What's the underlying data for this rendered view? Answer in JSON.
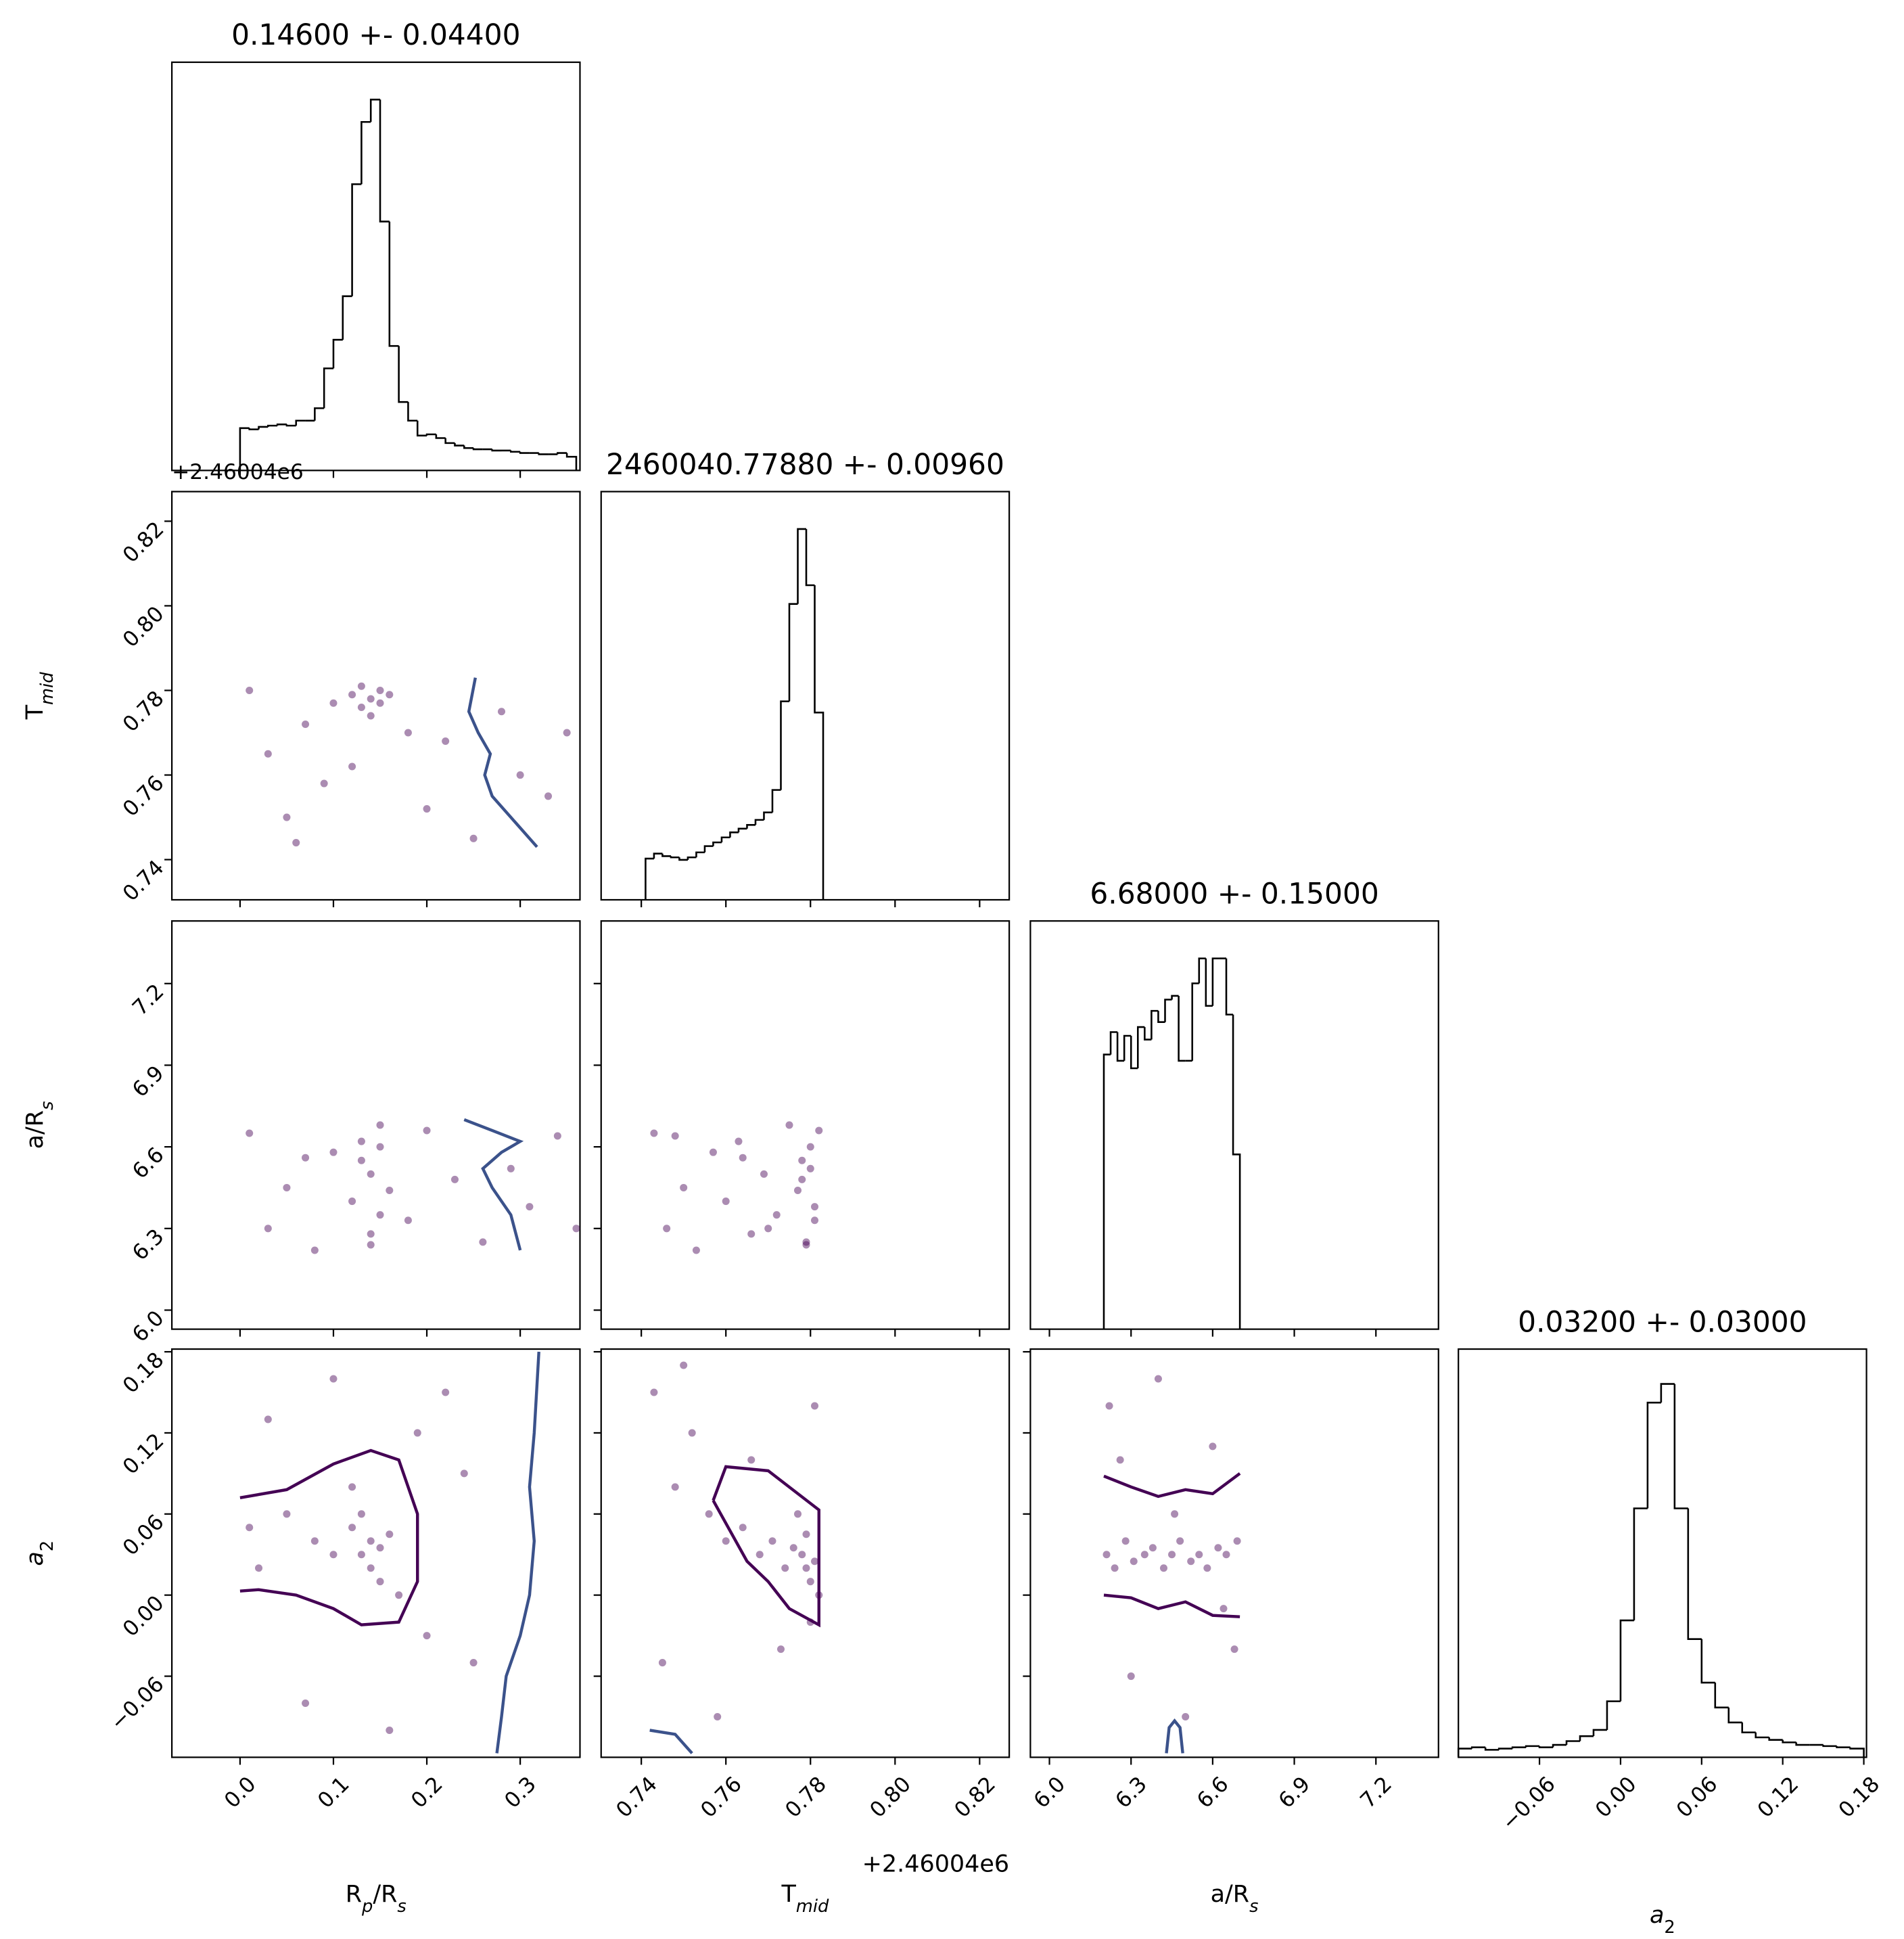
{
  "chart_data": {
    "type": "corner",
    "parameters": [
      {
        "label": [
          {
            "text": "R"
          },
          {
            "text": "p",
            "sub": true,
            "italic": true
          },
          {
            "text": "/R"
          },
          {
            "text": "s",
            "sub": true,
            "italic": true
          }
        ],
        "title": "0.14600 +- 0.04400",
        "lim": [
          -0.073,
          0.364
        ],
        "ticks": [
          {
            "value": 0,
            "label": "0.0"
          },
          0.1,
          0.2,
          0.3
        ]
      },
      {
        "label": [
          {
            "text": "T"
          },
          {
            "text": "mid",
            "sub": true,
            "italic": true
          }
        ],
        "title": "2460040.77880 +- 0.00960",
        "lim": [
          0.7305,
          0.827
        ],
        "offset": "+2.46004e6",
        "ticks": [
          0.74,
          0.76,
          0.78,
          {
            "value": 0.8,
            "label": "0.80"
          },
          0.82
        ]
      },
      {
        "label": [
          {
            "text": "a/R"
          },
          {
            "text": "s",
            "sub": true,
            "italic": true
          }
        ],
        "title": "6.68000 +- 0.15000",
        "lim": [
          5.93,
          7.43
        ],
        "ticks": [
          {
            "value": 6,
            "label": "6.0"
          },
          6.3,
          6.6,
          6.9,
          7.2
        ]
      },
      {
        "label": [
          {
            "text": "a",
            "italic": true
          },
          {
            "text": "2",
            "sub": true
          }
        ],
        "title": "0.03200 +- 0.03000",
        "lim": [
          -0.12,
          0.182
        ],
        "ticks": [
          {
            "value": -0.06,
            "label": "−0.06"
          },
          {
            "value": 0,
            "label": "0.00"
          },
          0.06,
          0.12,
          0.18
        ]
      }
    ],
    "histograms": [
      {
        "ylim": [
          0,
          328
        ],
        "bins": [
          0,
          0.01,
          0.02,
          0.03,
          0.04,
          0.05,
          0.06,
          0.07,
          0.08,
          0.09,
          0.1,
          0.11,
          0.12,
          0.13,
          0.14,
          0.15,
          0.16,
          0.17,
          0.18,
          0.19,
          0.2,
          0.21,
          0.22,
          0.23,
          0.24,
          0.25,
          0.26,
          0.27,
          0.28,
          0.29,
          0.3,
          0.31,
          0.32,
          0.33,
          0.34,
          0.35,
          0.36
        ],
        "counts": [
          34,
          33,
          35,
          36,
          37,
          36,
          40,
          40,
          50,
          82,
          105,
          140,
          230,
          280,
          298,
          200,
          100,
          55,
          40,
          28,
          29,
          26,
          22,
          20,
          18,
          17,
          17,
          16,
          16,
          15,
          14,
          14,
          13,
          13,
          14,
          11
        ]
      },
      {
        "ylim": [
          0,
          327
        ],
        "bins": [
          0.741,
          0.743,
          0.745,
          0.747,
          0.749,
          0.751,
          0.753,
          0.755,
          0.757,
          0.759,
          0.761,
          0.763,
          0.765,
          0.767,
          0.769,
          0.771,
          0.773,
          0.775,
          0.777,
          0.779,
          0.781,
          0.783
        ],
        "counts": [
          33,
          37,
          35,
          34,
          32,
          34,
          38,
          43,
          46,
          50,
          54,
          57,
          60,
          64,
          70,
          88,
          159,
          237,
          297,
          252,
          150
        ]
      },
      {
        "ylim": [
          0,
          327
        ],
        "bins": [
          6.2,
          6.225,
          6.25,
          6.275,
          6.3,
          6.325,
          6.35,
          6.375,
          6.4,
          6.425,
          6.45,
          6.475,
          6.5,
          6.525,
          6.55,
          6.575,
          6.6,
          6.625,
          6.65,
          6.675,
          6.7
        ],
        "counts": [
          220,
          238,
          215,
          235,
          209,
          242,
          232,
          255,
          246,
          264,
          267,
          215,
          215,
          277,
          297,
          259,
          297,
          297,
          252,
          140
        ]
      },
      {
        "ylim": [
          0,
          328
        ],
        "bins": [
          -0.12,
          -0.11,
          -0.1,
          -0.09,
          -0.08,
          -0.07,
          -0.06,
          -0.05,
          -0.04,
          -0.03,
          -0.02,
          -0.01,
          0,
          0.01,
          0.02,
          0.03,
          0.04,
          0.05,
          0.06,
          0.07,
          0.08,
          0.09,
          0.1,
          0.11,
          0.12,
          0.13,
          0.14,
          0.15,
          0.16,
          0.17,
          0.18
        ],
        "counts": [
          7,
          8,
          6,
          7,
          8,
          9,
          8,
          10,
          13,
          17,
          22,
          45,
          110,
          200,
          285,
          300,
          200,
          95,
          60,
          40,
          28,
          20,
          16,
          14,
          12,
          10,
          10,
          9,
          8,
          7
        ]
      }
    ],
    "pairs": [
      {
        "color": "#440154",
        "x": [
          0.01,
          0.03,
          0.05,
          0.07,
          0.09,
          0.1,
          0.12,
          0.13,
          0.14,
          0.15,
          0.16,
          0.14,
          0.13,
          0.15,
          0.12,
          0.18,
          0.2,
          0.22,
          0.25,
          0.28,
          0.3,
          0.33,
          0.35,
          0.06
        ],
        "y": [
          0.78,
          0.765,
          0.75,
          0.772,
          0.758,
          0.777,
          0.779,
          0.776,
          0.778,
          0.777,
          0.779,
          0.774,
          0.781,
          0.78,
          0.762,
          0.77,
          0.752,
          0.768,
          0.745,
          0.775,
          0.76,
          0.755,
          0.77,
          0.744
        ],
        "lines": [
          {
            "color": "#3b528b",
            "x": [
              0.252,
              0.245,
              0.255,
              0.268,
              0.262,
              0.27,
              0.29,
              0.318
            ],
            "y": [
              0.783,
              0.775,
              0.77,
              0.765,
              0.76,
              0.755,
              0.75,
              0.743
            ]
          }
        ]
      },
      {
        "color": "#440154",
        "x": [
          0.01,
          0.03,
          0.05,
          0.08,
          0.1,
          0.12,
          0.13,
          0.14,
          0.14,
          0.15,
          0.15,
          0.16,
          0.13,
          0.14,
          0.15,
          0.18,
          0.2,
          0.23,
          0.26,
          0.29,
          0.31,
          0.34,
          0.36,
          0.07
        ],
        "y": [
          6.65,
          6.3,
          6.45,
          6.22,
          6.58,
          6.4,
          6.62,
          6.28,
          6.5,
          6.35,
          6.68,
          6.44,
          6.55,
          6.24,
          6.6,
          6.33,
          6.66,
          6.48,
          6.25,
          6.52,
          6.38,
          6.64,
          6.3,
          6.56
        ],
        "lines": [
          {
            "color": "#3b528b",
            "x": [
              0.24,
              0.27,
              0.3,
              0.28,
              0.26,
              0.27,
              0.29,
              0.3
            ],
            "y": [
              6.7,
              6.66,
              6.62,
              6.58,
              6.52,
              6.45,
              6.35,
              6.22
            ]
          }
        ]
      },
      {
        "color": "#440154",
        "x": [
          0.743,
          0.746,
          0.75,
          0.753,
          0.757,
          0.76,
          0.763,
          0.766,
          0.769,
          0.772,
          0.775,
          0.777,
          0.778,
          0.779,
          0.78,
          0.781,
          0.782,
          0.778,
          0.779,
          0.78,
          0.781,
          0.748,
          0.77,
          0.764
        ],
        "y": [
          6.65,
          6.3,
          6.45,
          6.22,
          6.58,
          6.4,
          6.62,
          6.28,
          6.5,
          6.35,
          6.68,
          6.44,
          6.55,
          6.24,
          6.6,
          6.33,
          6.66,
          6.48,
          6.25,
          6.52,
          6.38,
          6.64,
          6.3,
          6.56
        ],
        "lines": []
      },
      {
        "color": "#440154",
        "x": [
          0.01,
          0.02,
          0.05,
          0.08,
          0.1,
          0.12,
          0.13,
          0.14,
          0.14,
          0.15,
          0.15,
          0.16,
          0.13,
          0.12,
          0.17,
          0.19,
          0.22,
          0.25,
          0.03,
          0.07,
          0.1,
          0.2,
          0.24,
          0.16
        ],
        "y": [
          0.05,
          0.02,
          0.06,
          0.04,
          0.03,
          0.05,
          0.03,
          0.04,
          0.02,
          0.035,
          0.01,
          0.045,
          0.06,
          0.08,
          0,
          0.12,
          0.15,
          -0.05,
          0.13,
          -0.08,
          0.16,
          -0.03,
          0.09,
          -0.1
        ],
        "lines": [
          {
            "color": "#440154",
            "x": [
              0,
              0.05,
              0.1,
              0.14,
              0.17,
              0.19,
              0.19,
              0.17,
              0.13,
              0.1,
              0.06,
              0.02,
              0
            ],
            "y": [
              0.072,
              0.078,
              0.097,
              0.107,
              0.1,
              0.06,
              0.01,
              -0.02,
              -0.022,
              -0.01,
              0,
              0.004,
              0.003
            ]
          },
          {
            "color": "#3b528b",
            "x": [
              0.32,
              0.315,
              0.31,
              0.315,
              0.31,
              0.3,
              0.285,
              0.28,
              0.275
            ],
            "y": [
              0.18,
              0.12,
              0.08,
              0.04,
              0,
              -0.03,
              -0.06,
              -0.09,
              -0.117
            ]
          }
        ]
      },
      {
        "color": "#440154",
        "x": [
          0.743,
          0.745,
          0.748,
          0.752,
          0.756,
          0.76,
          0.764,
          0.768,
          0.771,
          0.774,
          0.776,
          0.778,
          0.779,
          0.78,
          0.781,
          0.782,
          0.777,
          0.779,
          0.78,
          0.75,
          0.758,
          0.766,
          0.773,
          0.781
        ],
        "y": [
          0.15,
          -0.05,
          0.08,
          0.12,
          0.06,
          0.04,
          0.05,
          0.03,
          0.04,
          0.02,
          0.035,
          0.03,
          0.02,
          0.01,
          0.025,
          0,
          0.06,
          0.045,
          -0.02,
          0.17,
          -0.09,
          0.1,
          -0.04,
          0.14
        ],
        "lines": [
          {
            "color": "#440154",
            "x": [
              0.757,
              0.76,
              0.77,
              0.782,
              0.782,
              0.775,
              0.77,
              0.765,
              0.757
            ],
            "y": [
              0.07,
              0.095,
              0.092,
              0.063,
              -0.022,
              -0.01,
              0.01,
              0.025,
              0.07
            ]
          },
          {
            "color": "#3b528b",
            "x": [
              0.742,
              0.748,
              0.752
            ],
            "y": [
              -0.1,
              -0.103,
              -0.117
            ]
          }
        ]
      },
      {
        "color": "#440154",
        "x": [
          6.21,
          6.24,
          6.28,
          6.31,
          6.35,
          6.38,
          6.42,
          6.45,
          6.48,
          6.52,
          6.55,
          6.58,
          6.62,
          6.65,
          6.69,
          6.22,
          6.3,
          6.4,
          6.5,
          6.6,
          6.68,
          6.26,
          6.46,
          6.64
        ],
        "y": [
          0.03,
          0.02,
          0.04,
          0.025,
          0.03,
          0.035,
          0.02,
          0.03,
          0.04,
          0.025,
          0.03,
          0.02,
          0.035,
          0.03,
          0.04,
          0.14,
          -0.06,
          0.16,
          -0.09,
          0.11,
          -0.04,
          0.1,
          0.06,
          -0.01
        ],
        "lines": [
          {
            "color": "#440154",
            "x": [
              6.2,
              6.3,
              6.4,
              6.5,
              6.6,
              6.7
            ],
            "y": [
              0.088,
              0.08,
              0.073,
              0.078,
              0.075,
              0.09
            ]
          },
          {
            "color": "#440154",
            "x": [
              6.2,
              6.3,
              6.4,
              6.5,
              6.6,
              6.7
            ],
            "y": [
              0,
              -0.002,
              -0.01,
              -0.005,
              -0.015,
              -0.016
            ]
          },
          {
            "color": "#3b528b",
            "x": [
              6.43,
              6.44,
              6.46,
              6.48,
              6.49
            ],
            "y": [
              -0.117,
              -0.098,
              -0.093,
              -0.098,
              -0.117
            ]
          }
        ]
      }
    ]
  }
}
